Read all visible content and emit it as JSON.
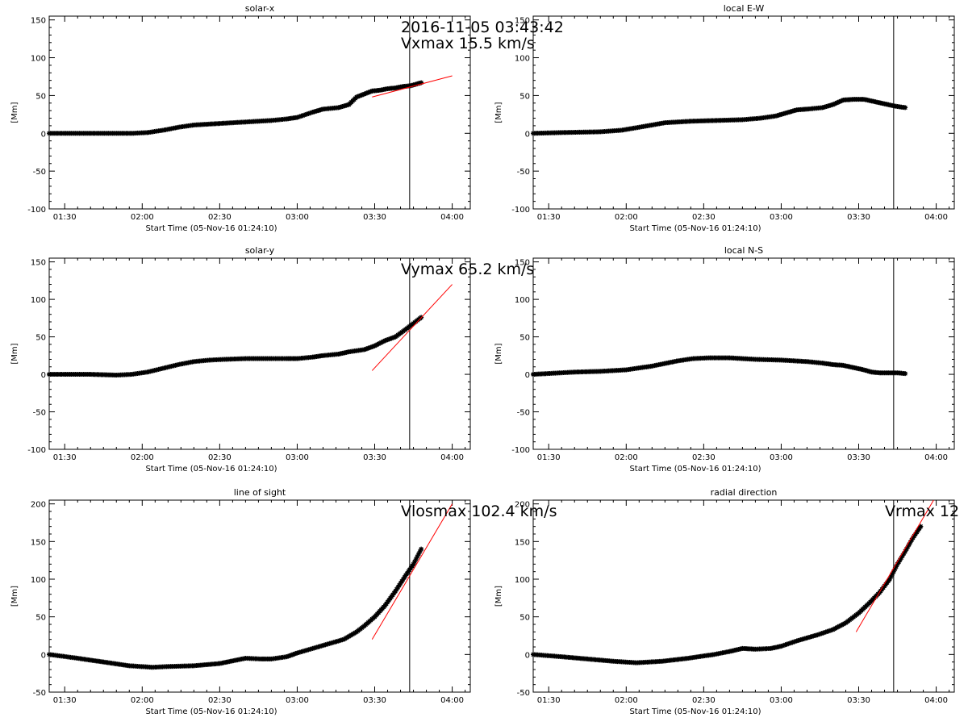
{
  "timestamp": "2016-11-05 03:43:42",
  "xlabel": "Start Time (05-Nov-16 01:24:10)",
  "ylabel": "[Mm]",
  "x_ticks": [
    "01:30",
    "02:00",
    "02:30",
    "03:00",
    "03:30",
    "04:00"
  ],
  "x_tick_values": [
    90,
    120,
    150,
    180,
    210,
    240
  ],
  "xlim": [
    84,
    247
  ],
  "vline_x": 223.53,
  "colors": {
    "data": "#000000",
    "fit": "#ff0000",
    "axis": "#000000"
  },
  "chart_data": [
    {
      "type": "scatter",
      "title": "solar-x",
      "ylim": [
        -100,
        155
      ],
      "y_ticks": [
        -100,
        -50,
        0,
        50,
        100,
        150
      ],
      "annotation": "Vxmax   15.5 km/s",
      "x": [
        84,
        100,
        116,
        122,
        128,
        134,
        140,
        150,
        160,
        170,
        176,
        180,
        186,
        190,
        196,
        200,
        203,
        206,
        209,
        212,
        215,
        218,
        221,
        224,
        227,
        228
      ],
      "y": [
        0,
        0,
        0,
        1,
        4,
        8,
        11,
        13,
        15,
        17,
        19,
        21,
        28,
        32,
        34,
        38,
        48,
        52,
        56,
        57,
        59,
        60,
        62,
        63,
        66,
        67
      ],
      "fit": {
        "x": [
          209,
          240
        ],
        "y": [
          48,
          76
        ]
      }
    },
    {
      "type": "scatter",
      "title": "local E-W",
      "ylim": [
        -100,
        155
      ],
      "y_ticks": [
        -100,
        -50,
        0,
        50,
        100,
        150
      ],
      "x": [
        84,
        95,
        110,
        118,
        125,
        135,
        145,
        155,
        165,
        172,
        178,
        183,
        186,
        190,
        196,
        200,
        204,
        208,
        212,
        216,
        220,
        224,
        228
      ],
      "y": [
        0,
        1,
        2,
        4,
        8,
        14,
        16,
        17,
        18,
        20,
        23,
        28,
        31,
        32,
        34,
        38,
        44,
        45,
        45,
        42,
        39,
        36,
        34
      ],
      "fit": null
    },
    {
      "type": "scatter",
      "title": "solar-y",
      "ylim": [
        -100,
        155
      ],
      "y_ticks": [
        -100,
        -50,
        0,
        50,
        100,
        150
      ],
      "annotation": "Vymax   65.2 km/s",
      "x": [
        84,
        100,
        110,
        116,
        122,
        128,
        134,
        140,
        146,
        152,
        160,
        170,
        176,
        180,
        186,
        190,
        196,
        200,
        206,
        210,
        214,
        218,
        222,
        225,
        228
      ],
      "y": [
        0,
        0,
        -1,
        0,
        3,
        8,
        13,
        17,
        19,
        20,
        21,
        21,
        21,
        21,
        23,
        25,
        27,
        30,
        33,
        38,
        45,
        50,
        60,
        68,
        76
      ],
      "fit": {
        "x": [
          209,
          240
        ],
        "y": [
          5,
          120
        ]
      }
    },
    {
      "type": "scatter",
      "title": "local N-S",
      "ylim": [
        -100,
        155
      ],
      "y_ticks": [
        -100,
        -50,
        0,
        50,
        100,
        150
      ],
      "x": [
        84,
        100,
        110,
        120,
        130,
        140,
        146,
        152,
        160,
        170,
        180,
        190,
        196,
        200,
        204,
        208,
        212,
        215,
        218,
        222,
        225,
        228
      ],
      "y": [
        0,
        3,
        4,
        6,
        11,
        18,
        21,
        22,
        22,
        20,
        19,
        17,
        15,
        13,
        12,
        9,
        6,
        3,
        2,
        2,
        2,
        1
      ],
      "fit": null
    },
    {
      "type": "scatter",
      "title": "line of sight",
      "ylim": [
        -50,
        205
      ],
      "y_ticks": [
        -50,
        0,
        50,
        100,
        150,
        200
      ],
      "annotation": "Vlosmax   102.4 km/s",
      "x": [
        84,
        95,
        105,
        115,
        124,
        130,
        140,
        150,
        160,
        166,
        170,
        176,
        180,
        186,
        192,
        198,
        203,
        206,
        210,
        214,
        218,
        222,
        225,
        228
      ],
      "y": [
        0,
        -5,
        -10,
        -15,
        -17,
        -16,
        -15,
        -12,
        -5,
        -6,
        -6,
        -3,
        2,
        8,
        14,
        20,
        30,
        38,
        50,
        65,
        84,
        105,
        120,
        140
      ],
      "fit": {
        "x": [
          209,
          240
        ],
        "y": [
          20,
          200
        ]
      }
    },
    {
      "type": "scatter",
      "title": "radial direction",
      "ylim": [
        -50,
        205
      ],
      "y_ticks": [
        -50,
        0,
        50,
        100,
        150,
        200
      ],
      "annotation": "Vrmax   12",
      "x": [
        84,
        95,
        105,
        115,
        124,
        134,
        144,
        154,
        160,
        165,
        170,
        176,
        180,
        186,
        194,
        200,
        205,
        210,
        214,
        218,
        222,
        225,
        228,
        231,
        234
      ],
      "y": [
        0,
        -3,
        -6,
        -9,
        -11,
        -9,
        -5,
        0,
        4,
        8,
        7,
        8,
        11,
        18,
        26,
        33,
        42,
        55,
        68,
        82,
        100,
        120,
        137,
        155,
        170
      ],
      "fit": {
        "x": [
          209,
          239
        ],
        "y": [
          30,
          205
        ]
      }
    }
  ]
}
